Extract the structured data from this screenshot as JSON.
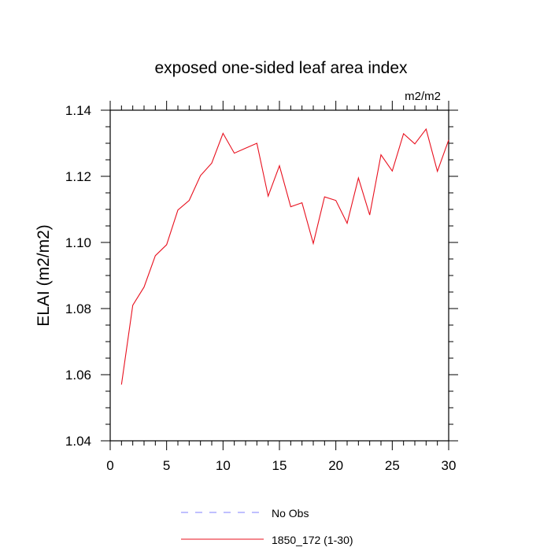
{
  "chart_data": {
    "type": "line",
    "title": "exposed one-sided leaf area index",
    "units_label": "m2/m2",
    "ylabel": "ELAI  (m2/m2)",
    "xlabel": "",
    "xlim": [
      0,
      30
    ],
    "ylim": [
      1.04,
      1.14
    ],
    "xticks": [
      0,
      5,
      10,
      15,
      20,
      25,
      30
    ],
    "xtick_labels": [
      "0",
      "5",
      "10",
      "15",
      "20",
      "25",
      "30"
    ],
    "yticks": [
      1.04,
      1.06,
      1.08,
      1.1,
      1.12,
      1.14
    ],
    "ytick_labels": [
      "1.04",
      "1.06",
      "1.08",
      "1.10",
      "1.12",
      "1.14"
    ],
    "x_minor_step": 1,
    "y_minor_step": 0.005,
    "grid": false,
    "legend": [
      {
        "label": "No Obs",
        "color": "#8080ff",
        "style": "dashed"
      },
      {
        "label": "1850_172 (1-30)",
        "color": "#e8101e",
        "style": "solid"
      }
    ],
    "series": [
      {
        "name": "1850_172 (1-30)",
        "color": "#e8101e",
        "x": [
          1,
          2,
          3,
          4,
          5,
          6,
          7,
          8,
          9,
          10,
          11,
          12,
          13,
          14,
          15,
          16,
          17,
          18,
          19,
          20,
          21,
          22,
          23,
          24,
          25,
          26,
          27,
          28,
          29,
          30
        ],
        "values": [
          1.057,
          1.081,
          1.0865,
          1.096,
          1.0993,
          1.1098,
          1.1127,
          1.1202,
          1.124,
          1.133,
          1.127,
          1.1285,
          1.13,
          1.114,
          1.1232,
          1.1108,
          1.112,
          1.0997,
          1.1138,
          1.1127,
          1.1058,
          1.1195,
          1.1083,
          1.1265,
          1.1216,
          1.1329,
          1.1298,
          1.1343,
          1.1215,
          1.131
        ]
      }
    ]
  }
}
